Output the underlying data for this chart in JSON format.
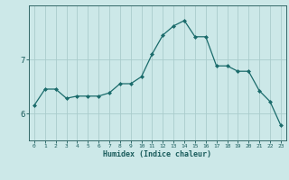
{
  "x": [
    0,
    1,
    2,
    3,
    4,
    5,
    6,
    7,
    8,
    9,
    10,
    11,
    12,
    13,
    14,
    15,
    16,
    17,
    18,
    19,
    20,
    21,
    22,
    23
  ],
  "y": [
    6.15,
    6.45,
    6.45,
    6.28,
    6.32,
    6.32,
    6.32,
    6.38,
    6.55,
    6.55,
    6.68,
    7.1,
    7.45,
    7.62,
    7.72,
    7.42,
    7.42,
    6.88,
    6.88,
    6.78,
    6.78,
    6.42,
    6.22,
    5.78
  ],
  "line_color": "#1a6b6b",
  "marker_color": "#1a6b6b",
  "bg_color": "#cce8e8",
  "grid_color": "#aacccc",
  "axis_color": "#336666",
  "tick_color": "#1a5c5c",
  "xlabel": "Humidex (Indice chaleur)",
  "yticks": [
    6,
    7
  ],
  "ylim": [
    5.5,
    8.0
  ],
  "xlim": [
    -0.5,
    23.5
  ],
  "figsize": [
    3.2,
    2.0
  ],
  "dpi": 100
}
